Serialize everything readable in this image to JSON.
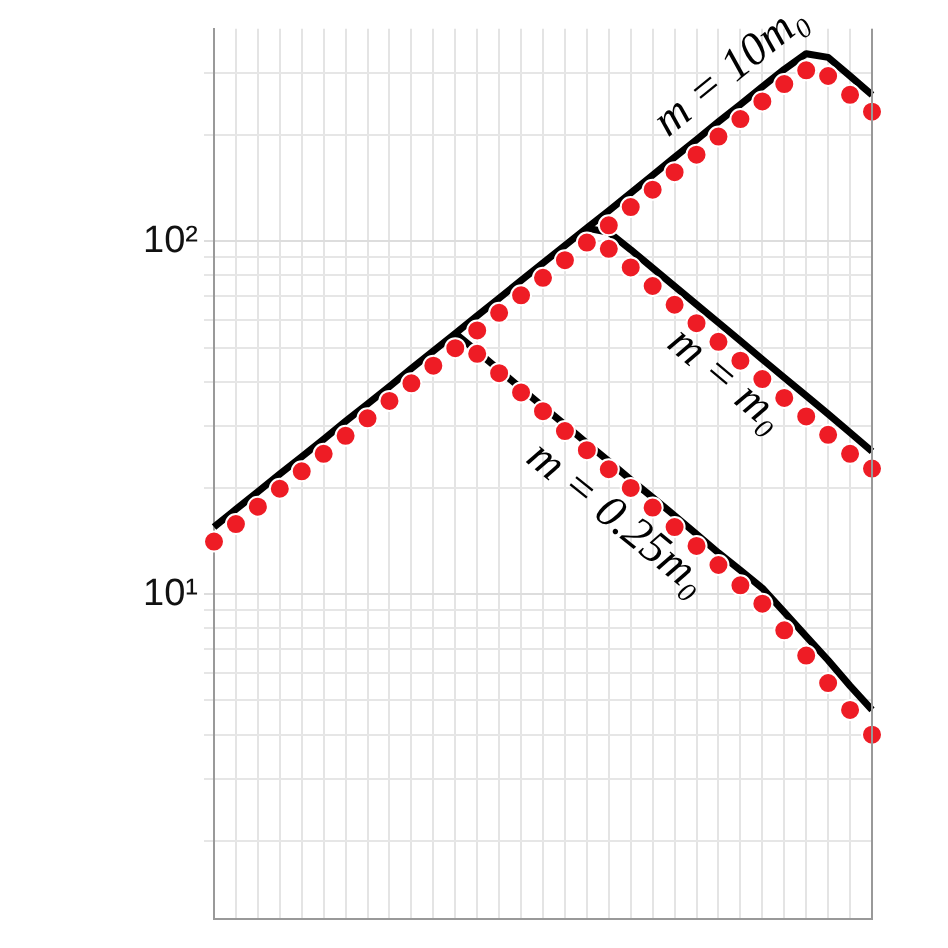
{
  "chart_data": {
    "type": "line",
    "categories": [
      null,
      null,
      null,
      null,
      null,
      null,
      null,
      null,
      null,
      null,
      null,
      null,
      null,
      null,
      null,
      null,
      null,
      null,
      null,
      null,
      null,
      null,
      null,
      null,
      null,
      null,
      null,
      null,
      null,
      null,
      null
    ],
    "series": [
      {
        "name": "m = 10m₀",
        "color": "#000000",
        "marker": "none",
        "values": [
          15.5,
          17.4,
          19.5,
          21.9,
          24.5,
          27.5,
          30.9,
          34.6,
          38.8,
          43.6,
          48.9,
          54.8,
          61.5,
          69,
          77.4,
          86.8,
          97.3,
          109,
          122,
          137,
          154,
          173,
          194,
          218,
          244,
          274,
          307,
          340,
          332,
          294,
          260
        ]
      },
      {
        "name": "m = m₀",
        "color": "#000000",
        "marker": "none",
        "values": [
          null,
          null,
          null,
          null,
          null,
          null,
          null,
          null,
          null,
          null,
          null,
          null,
          null,
          null,
          null,
          null,
          null,
          109,
          106,
          94.7,
          84,
          74.6,
          66.2,
          58.8,
          52.2,
          46.3,
          41.1,
          36.5,
          32.4,
          28.7,
          25.4
        ]
      },
      {
        "name": "m = 0.25m₀",
        "color": "#000000",
        "marker": "none",
        "values": [
          null,
          null,
          null,
          null,
          null,
          null,
          null,
          null,
          null,
          null,
          null,
          54.8,
          48.7,
          43.2,
          38.3,
          34,
          30.2,
          26.8,
          23.8,
          21.1,
          18.8,
          16.7,
          14.8,
          13.1,
          11.7,
          10.4,
          8.9,
          7.6,
          6.5,
          5.5,
          4.7
        ]
      },
      {
        "color": "#ee1c25",
        "type": "scatter",
        "values": [
          14.1,
          15.8,
          17.7,
          19.9,
          22.3,
          25,
          28.1,
          31.5,
          35.3,
          39.6,
          44.4,
          49.8,
          55.9,
          62.7,
          70.3,
          78.8,
          88.4,
          99.2,
          111,
          125,
          140,
          157,
          176,
          198,
          222,
          249,
          279,
          305,
          294,
          260,
          233
        ]
      },
      {
        "color": "#ee1c25",
        "type": "scatter",
        "values": [
          null,
          null,
          null,
          null,
          null,
          null,
          null,
          null,
          null,
          null,
          null,
          null,
          null,
          null,
          null,
          null,
          null,
          null,
          95.2,
          84.3,
          74.7,
          66.1,
          58.6,
          51.9,
          45.9,
          40.7,
          36,
          31.9,
          28.3,
          25,
          22.7
        ]
      },
      {
        "color": "#ee1c25",
        "type": "scatter",
        "values": [
          null,
          null,
          null,
          null,
          null,
          null,
          null,
          null,
          null,
          null,
          null,
          null,
          48,
          42.3,
          37.3,
          33,
          29,
          25.6,
          22.6,
          20,
          17.6,
          15.5,
          13.7,
          12.1,
          10.6,
          9.4,
          7.9,
          6.7,
          5.6,
          4.7,
          4
        ]
      }
    ],
    "log": "y",
    "ylim": [
      1.2,
      400
    ],
    "yticks": [
      {
        "value": 2,
        "label": null
      },
      {
        "value": 3,
        "label": null
      },
      {
        "value": 4,
        "label": null
      },
      {
        "value": 5,
        "label": null
      },
      {
        "value": 6,
        "label": null
      },
      {
        "value": 7,
        "label": null
      },
      {
        "value": 8,
        "label": null
      },
      {
        "value": 9,
        "label": null
      },
      {
        "value": 10,
        "label": "10¹"
      },
      {
        "value": 20,
        "label": null
      },
      {
        "value": 30,
        "label": null
      },
      {
        "value": 40,
        "label": null
      },
      {
        "value": 50,
        "label": null
      },
      {
        "value": 60,
        "label": null
      },
      {
        "value": 70,
        "label": null
      },
      {
        "value": 80,
        "label": null
      },
      {
        "value": 90,
        "label": null
      },
      {
        "value": 100,
        "label": "10²"
      },
      {
        "value": 200,
        "label": null
      },
      {
        "value": 300,
        "label": null
      }
    ],
    "grid": true,
    "legend": false,
    "line_style": "solid"
  }
}
